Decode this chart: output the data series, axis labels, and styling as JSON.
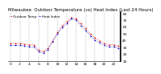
{
  "title": "Milwaukee  Outdoor Temperature (vs) Heat Index (Last 24 Hours)",
  "line1_label": "Outdoor Temp",
  "line2_label": "Heat Index",
  "line1_color": "#dd0000",
  "line2_color": "#0000cc",
  "background_color": "#ffffff",
  "grid_color": "#888888",
  "ylim": [
    10,
    82
  ],
  "ytick_vals": [
    10,
    20,
    30,
    40,
    50,
    60,
    70,
    80
  ],
  "ytick_labels": [
    "10",
    "20",
    "30",
    "40",
    "50",
    "60",
    "70",
    "80"
  ],
  "x_hours": [
    0,
    1,
    2,
    3,
    4,
    5,
    6,
    7,
    8,
    9,
    10,
    11,
    12,
    13,
    14,
    15,
    16,
    17,
    18,
    19,
    20,
    21,
    22,
    23
  ],
  "temp": [
    36,
    36,
    36,
    35,
    34,
    34,
    26,
    24,
    29,
    40,
    52,
    62,
    68,
    74,
    72,
    65,
    58,
    50,
    44,
    40,
    36,
    34,
    34,
    32
  ],
  "heat_index": [
    33,
    33,
    33,
    32,
    31,
    31,
    24,
    22,
    27,
    38,
    50,
    59,
    65,
    72,
    70,
    62,
    55,
    47,
    41,
    37,
    33,
    31,
    31,
    29
  ],
  "title_fontsize": 4.0,
  "tick_fontsize": 3.2,
  "line_markersize": 1.2,
  "legend_fontsize": 3.0,
  "xtick_positions": [
    0,
    2,
    4,
    6,
    8,
    10,
    12,
    14,
    16,
    18,
    20,
    22
  ],
  "xtick_labels": [
    "0",
    "2",
    "4",
    "6",
    "8",
    "10",
    "12",
    "14",
    "16",
    "18",
    "20",
    "22"
  ]
}
